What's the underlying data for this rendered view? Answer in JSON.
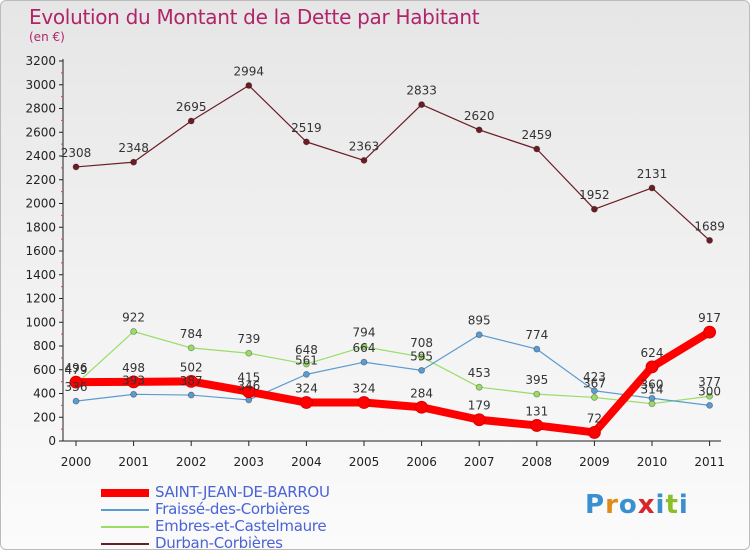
{
  "title": "Evolution du Montant de la Dette par Habitant",
  "unit": "(en €)",
  "logo": {
    "text": "Proxiti",
    "colors": [
      "#3a8fd0",
      "#e08a1a",
      "#3a8fd0",
      "#d8262b",
      "#3a8fd0",
      "#8bbf2a",
      "#3a8fd0"
    ]
  },
  "chart_data": {
    "type": "line",
    "title": "Evolution du Montant de la Dette par Habitant",
    "ylabel": "(en €)",
    "xlabel": "",
    "x": [
      "2000",
      "2001",
      "2002",
      "2003",
      "2004",
      "2005",
      "2006",
      "2007",
      "2008",
      "2009",
      "2010",
      "2011"
    ],
    "ylim": [
      0,
      3200
    ],
    "yticks": [
      0,
      200,
      400,
      600,
      800,
      1000,
      1200,
      1400,
      1600,
      1800,
      2000,
      2200,
      2400,
      2600,
      2800,
      3000,
      3200
    ],
    "grid": false,
    "legend_placement": "bottom-left",
    "series": [
      {
        "name": "Durban-Corbières",
        "color": "#6b1c24",
        "width": 1.2,
        "dot": 3,
        "values": [
          2308,
          2348,
          2695,
          2994,
          2519,
          2363,
          2833,
          2620,
          2459,
          1952,
          2131,
          1689
        ]
      },
      {
        "name": "Embres-et-Castelmaure",
        "color": "#99dd66",
        "width": 1.2,
        "dot": 3,
        "values": [
          479,
          922,
          784,
          739,
          648,
          794,
          708,
          453,
          395,
          367,
          314,
          377
        ]
      },
      {
        "name": "Fraissé-des-Corbières",
        "color": "#5b9bd0",
        "width": 1.2,
        "dot": 3,
        "values": [
          336,
          393,
          387,
          346,
          561,
          664,
          595,
          895,
          774,
          423,
          360,
          300
        ]
      },
      {
        "name": "SAINT-JEAN-DE-BARROU",
        "color": "#ff0000",
        "width": 8,
        "dot": 6,
        "values": [
          496,
          498,
          502,
          415,
          324,
          324,
          284,
          179,
          131,
          72,
          624,
          917
        ]
      }
    ],
    "legend_order": [
      "SAINT-JEAN-DE-BARROU",
      "Fraissé-des-Corbières",
      "Embres-et-Castelmaure",
      "Durban-Corbières"
    ]
  }
}
